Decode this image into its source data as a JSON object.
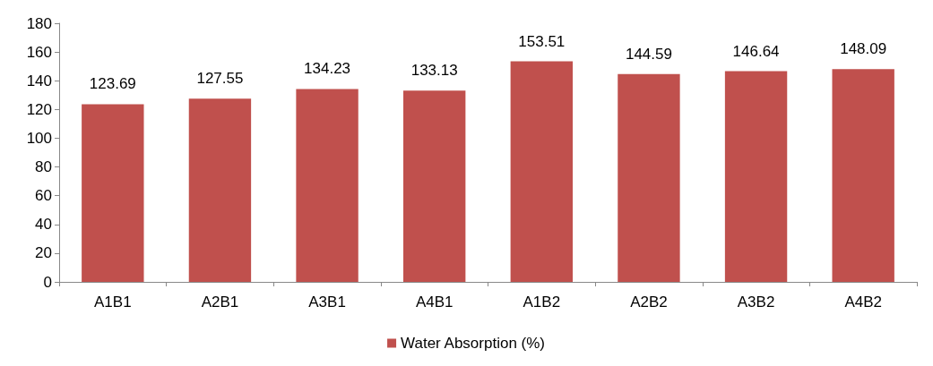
{
  "chart_data": {
    "type": "bar",
    "categories": [
      "A1B1",
      "A2B1",
      "A3B1",
      "A4B1",
      "A1B2",
      "A2B2",
      "A3B2",
      "A4B2"
    ],
    "series": [
      {
        "name": "Water Absorption (%)",
        "color": "#c0504d",
        "values": [
          123.69,
          127.55,
          134.23,
          133.13,
          153.51,
          144.59,
          146.64,
          148.09
        ]
      }
    ],
    "ylim": [
      0,
      180
    ],
    "yticks": [
      0,
      20,
      40,
      60,
      80,
      100,
      120,
      140,
      160,
      180
    ],
    "grid": false,
    "legend": "bottom",
    "data_labels": true
  }
}
